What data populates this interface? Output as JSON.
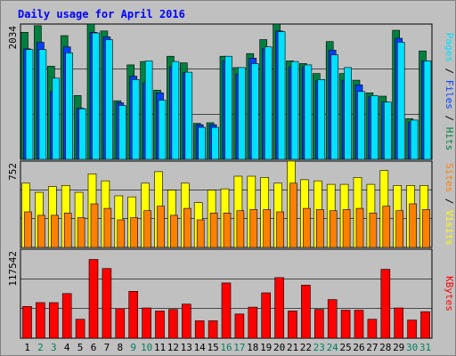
{
  "chart_data": {
    "type": "bar",
    "title": "Daily usage for April 2016",
    "colors": {
      "title": "#0000ff",
      "background": "#c0c0c0",
      "hits": "#008040",
      "files": "#0040ff",
      "pages": "#00e0ff",
      "visits": "#ffff00",
      "sites": "#ff8000",
      "kbytes": "#ff0000",
      "weekday_label": "#000000",
      "weekend_label": "#00805c"
    },
    "x": {
      "days": [
        "1",
        "2",
        "3",
        "4",
        "5",
        "6",
        "7",
        "8",
        "9",
        "10",
        "11",
        "12",
        "13",
        "14",
        "15",
        "16",
        "17",
        "18",
        "19",
        "20",
        "21",
        "22",
        "23",
        "24",
        "25",
        "26",
        "27",
        "28",
        "29",
        "30",
        "31"
      ],
      "weekend_days": [
        2,
        3,
        9,
        10,
        16,
        17,
        23,
        24,
        30,
        31
      ]
    },
    "panels": {
      "hits_files_pages": {
        "y_max_label": "2034",
        "y_max": 2034,
        "legend_right": [
          "Pages",
          "Files",
          "Hits"
        ],
        "series": [
          {
            "name": "Hits",
            "values": [
              1910,
              2010,
              1400,
              1860,
              960,
              2034,
              1930,
              880,
              1420,
              1470,
              1040,
              1550,
              1450,
              540,
              550,
              1550,
              1380,
              1590,
              1800,
              2034,
              1480,
              1440,
              1290,
              1770,
              1290,
              1190,
              1000,
              950,
              1940,
              610,
              1630
            ]
          },
          {
            "name": "Files",
            "values": [
              1660,
              1760,
              1020,
              1690,
              770,
              1910,
              1840,
              850,
              1250,
              1150,
              1000,
              1390,
              1300,
              520,
              520,
              1480,
              1280,
              1520,
              1670,
              1930,
              1390,
              1390,
              1180,
              1640,
              1190,
              1120,
              940,
              860,
              1820,
              560,
              1480
            ]
          },
          {
            "name": "Pages",
            "values": [
              1650,
              1650,
              1220,
              1600,
              760,
              1900,
              1800,
              810,
              1200,
              1480,
              890,
              1470,
              1310,
              480,
              480,
              1550,
              1380,
              1440,
              1690,
              1920,
              1470,
              1420,
              1200,
              1570,
              1380,
              1020,
              960,
              860,
              1760,
              590,
              1480
            ]
          }
        ]
      },
      "visits_sites": {
        "y_max_label": "752",
        "y_max": 752,
        "legend_right": [
          "Sites",
          "Visits"
        ],
        "series": [
          {
            "name": "Visits",
            "values": [
              560,
              480,
              530,
              540,
              480,
              640,
              580,
              450,
              440,
              560,
              660,
              500,
              560,
              390,
              500,
              510,
              620,
              620,
              610,
              560,
              752,
              590,
              580,
              550,
              550,
              610,
              550,
              670,
              540,
              540,
              540
            ]
          },
          {
            "name": "Sites",
            "values": [
              310,
              280,
              280,
              300,
              260,
              380,
              340,
              240,
              260,
              320,
              360,
              280,
              340,
              240,
              300,
              300,
              320,
              330,
              330,
              310,
              560,
              340,
              330,
              320,
              330,
              340,
              300,
              360,
              320,
              380,
              330
            ]
          }
        ]
      },
      "kbytes": {
        "y_max_label": "117542",
        "y_max": 117542,
        "legend_right": [
          "KBytes"
        ],
        "series": [
          {
            "name": "KBytes",
            "values": [
              42000,
              47000,
              47000,
              59000,
              25000,
              104000,
              92000,
              39000,
              62000,
              40000,
              36000,
              38000,
              45000,
              23000,
              23000,
              73000,
              32000,
              41000,
              60000,
              80000,
              36000,
              70000,
              38000,
              51000,
              37000,
              37000,
              25000,
              91000,
              40000,
              24000,
              35000
            ]
          }
        ]
      }
    }
  }
}
